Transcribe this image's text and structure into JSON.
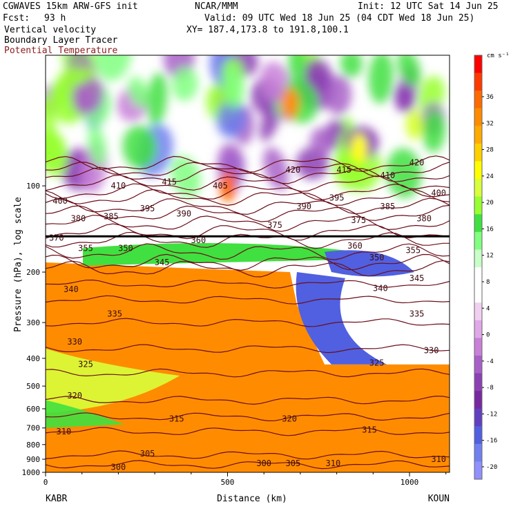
{
  "header": {
    "model": "CGWAVES 15km ARW-GFS init",
    "fcst_label": "Fcst:",
    "fcst_value": "93 h",
    "org": "NCAR/MMM",
    "init": "Init: 12 UTC Sat 14 Jun 25",
    "valid": "Valid: 09 UTC Wed 18 Jun 25 (04 CDT Wed 18 Jun 25)",
    "xy": "XY= 187.4,173.8 to 191.8,100.1",
    "field1": "Vertical velocity",
    "field2": "Boundary Layer Tracer",
    "field3": "Potential Temperature"
  },
  "chart_data": {
    "type": "heatmap",
    "title": "Vertical velocity",
    "xlabel": "Distance (km)",
    "ylabel": "Pressure (hPa), log scale",
    "x_ticks": [
      0,
      500,
      1000
    ],
    "y_ticks": [
      100,
      200,
      300,
      400,
      500,
      600,
      700,
      800,
      900,
      1000
    ],
    "y_scale": "log",
    "endpoints": {
      "left": "KABR",
      "right": "KOUN"
    },
    "colorbar": {
      "units": "cm s⁻¹",
      "labels": [
        "36",
        "32",
        "28",
        "24",
        "20",
        "16",
        "12",
        "8",
        "4",
        "0",
        "-4",
        "-8",
        "-12",
        "-16",
        "-20"
      ],
      "colors": [
        "#ff0000",
        "#ff3a00",
        "#ff6a00",
        "#ff8c00",
        "#ffaa00",
        "#ffd000",
        "#ffff00",
        "#d8ff3a",
        "#98ff30",
        "#40e040",
        "#80ff80",
        "#c8ffc8",
        "#ffffff",
        "#ffffff",
        "#f0d0f0",
        "#e0a8e8",
        "#c880d8",
        "#a860c8",
        "#8c40b4",
        "#7828a0",
        "#6040c0",
        "#5060e0",
        "#7080f0",
        "#9090ff"
      ]
    },
    "theta_contours": [
      {
        "value": 300,
        "p": 940
      },
      {
        "value": 305,
        "p": 870
      },
      {
        "value": 310,
        "p": 720
      },
      {
        "value": 315,
        "p": 640
      },
      {
        "value": 320,
        "p": 560
      },
      {
        "value": 325,
        "p": 450
      },
      {
        "value": 330,
        "p": 370
      },
      {
        "value": 335,
        "p": 300
      },
      {
        "value": 340,
        "p": 250
      },
      {
        "value": 345,
        "p": 220
      },
      {
        "value": 350,
        "p": 195
      },
      {
        "value": 355,
        "p": 185
      },
      {
        "value": 360,
        "p": 170
      },
      {
        "value": 370,
        "p": 155
      },
      {
        "value": 375,
        "p": 145
      },
      {
        "value": 380,
        "p": 135
      },
      {
        "value": 385,
        "p": 125
      },
      {
        "value": 390,
        "p": 118
      },
      {
        "value": 395,
        "p": 110
      },
      {
        "value": 400,
        "p": 105
      },
      {
        "value": 405,
        "p": 98
      },
      {
        "value": 410,
        "p": 92
      },
      {
        "value": 415,
        "p": 88
      },
      {
        "value": 420,
        "p": 84
      }
    ],
    "theta_labels": [
      {
        "text": "300",
        "x": 200,
        "p": 960
      },
      {
        "text": "305",
        "x": 280,
        "p": 860
      },
      {
        "text": "300",
        "x": 600,
        "p": 930
      },
      {
        "text": "305",
        "x": 680,
        "p": 930
      },
      {
        "text": "310",
        "x": 50,
        "p": 720
      },
      {
        "text": "310",
        "x": 790,
        "p": 930
      },
      {
        "text": "310",
        "x": 1080,
        "p": 900
      },
      {
        "text": "315",
        "x": 360,
        "p": 650
      },
      {
        "text": "315",
        "x": 890,
        "p": 710
      },
      {
        "text": "320",
        "x": 80,
        "p": 540
      },
      {
        "text": "320",
        "x": 670,
        "p": 650
      },
      {
        "text": "325",
        "x": 110,
        "p": 420
      },
      {
        "text": "325",
        "x": 910,
        "p": 415
      },
      {
        "text": "330",
        "x": 80,
        "p": 350
      },
      {
        "text": "330",
        "x": 1060,
        "p": 375
      },
      {
        "text": "335",
        "x": 190,
        "p": 280
      },
      {
        "text": "335",
        "x": 1020,
        "p": 280
      },
      {
        "text": "340",
        "x": 70,
        "p": 230
      },
      {
        "text": "340",
        "x": 920,
        "p": 228
      },
      {
        "text": "345",
        "x": 320,
        "p": 185
      },
      {
        "text": "345",
        "x": 1020,
        "p": 210
      },
      {
        "text": "350",
        "x": 220,
        "p": 165
      },
      {
        "text": "350",
        "x": 910,
        "p": 178
      },
      {
        "text": "355",
        "x": 110,
        "p": 165
      },
      {
        "text": "355",
        "x": 1010,
        "p": 168
      },
      {
        "text": "360",
        "x": 850,
        "p": 162
      },
      {
        "text": "360",
        "x": 420,
        "p": 155
      },
      {
        "text": "370",
        "x": 30,
        "p": 152
      },
      {
        "text": "375",
        "x": 630,
        "p": 137
      },
      {
        "text": "375",
        "x": 860,
        "p": 132
      },
      {
        "text": "380",
        "x": 90,
        "p": 130
      },
      {
        "text": "380",
        "x": 1040,
        "p": 130
      },
      {
        "text": "385",
        "x": 180,
        "p": 128
      },
      {
        "text": "385",
        "x": 940,
        "p": 118
      },
      {
        "text": "390",
        "x": 380,
        "p": 125
      },
      {
        "text": "390",
        "x": 710,
        "p": 118
      },
      {
        "text": "395",
        "x": 280,
        "p": 120
      },
      {
        "text": "395",
        "x": 800,
        "p": 110
      },
      {
        "text": "400",
        "x": 40,
        "p": 113
      },
      {
        "text": "400",
        "x": 1080,
        "p": 106
      },
      {
        "text": "405",
        "x": 480,
        "p": 100
      },
      {
        "text": "410",
        "x": 200,
        "p": 100
      },
      {
        "text": "410",
        "x": 940,
        "p": 92
      },
      {
        "text": "415",
        "x": 340,
        "p": 97
      },
      {
        "text": "415",
        "x": 820,
        "p": 88
      },
      {
        "text": "420",
        "x": 680,
        "p": 88
      },
      {
        "text": "420",
        "x": 1020,
        "p": 83
      }
    ],
    "tropopause_p": 150,
    "grid": false
  }
}
